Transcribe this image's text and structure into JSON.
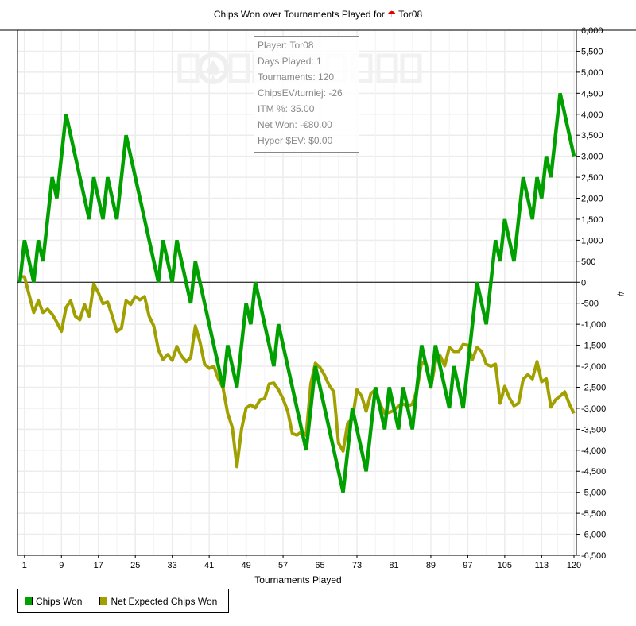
{
  "title": "Chips Won over Tournaments Played for",
  "player_icon": "poker-tracker-player-icon",
  "player_name": "Tor08",
  "watermark": "POKERTRACKER",
  "info": {
    "player": "Player: Tor08",
    "days": "Days Played: 1",
    "tournaments": "Tournaments: 120",
    "chipsev": "ChipsEV/turniej: -26",
    "itm": "ITM %: 35.00",
    "netwon": "Net Won: -€80.00",
    "hyper": "Hyper $EV: $0.00"
  },
  "chart_data": {
    "type": "line",
    "title": "Chips Won over Tournaments Played for Tor08",
    "xlabel": "Tournaments Played",
    "ylabel": "#",
    "xlim": [
      0,
      120
    ],
    "ylim": [
      -6500,
      6000
    ],
    "x_ticks": [
      1,
      9,
      17,
      25,
      33,
      41,
      49,
      57,
      65,
      73,
      81,
      89,
      97,
      105,
      113,
      120
    ],
    "y_ticks": [
      6000,
      5500,
      5000,
      4500,
      4000,
      3500,
      3000,
      2500,
      2000,
      1500,
      1000,
      500,
      0,
      -500,
      -1000,
      -1500,
      -2000,
      -2500,
      -3000,
      -3500,
      -4000,
      -4500,
      -5000,
      -5500,
      -6000,
      -6500
    ],
    "y_tick_labels": [
      "6,000",
      "5,500",
      "5,000",
      "4,500",
      "4,000",
      "3,500",
      "3,000",
      "2,500",
      "2,000",
      "1,500",
      "1,000",
      "500",
      "0",
      "-500",
      "-1,000",
      "-1,500",
      "-2,000",
      "-2,500",
      "-3,000",
      "-3,500",
      "-4,000",
      "-4,500",
      "-5,000",
      "-5,500",
      "-6,000",
      "-6,500"
    ],
    "grid": true,
    "legend_position": "bottom-left",
    "series": [
      {
        "name": "Chips Won",
        "color": "#00a000",
        "x": [
          0,
          1,
          3,
          4,
          5,
          7,
          8,
          10,
          15,
          16,
          18,
          19,
          21,
          23,
          30,
          31,
          33,
          34,
          37,
          38,
          44,
          45,
          47,
          49,
          50,
          51,
          55,
          56,
          62,
          64,
          70,
          72,
          75,
          77,
          79,
          80,
          82,
          83,
          85,
          87,
          89,
          90,
          93,
          94,
          96,
          99,
          101,
          103,
          104,
          105,
          107,
          109,
          111,
          112,
          113,
          114,
          115,
          117,
          120
        ],
        "y": [
          0,
          1000,
          0,
          1000,
          500,
          2500,
          2000,
          4000,
          1500,
          2500,
          1500,
          2500,
          1500,
          3500,
          0,
          1000,
          0,
          1000,
          -500,
          500,
          -2500,
          -1500,
          -2500,
          -500,
          -1000,
          0,
          -2000,
          -1000,
          -4000,
          -2000,
          -5000,
          -3000,
          -4500,
          -2500,
          -3500,
          -2500,
          -3500,
          -2500,
          -3500,
          -1500,
          -2500,
          -1500,
          -3000,
          -2000,
          -3000,
          0,
          -1000,
          1000,
          500,
          1500,
          500,
          2500,
          1500,
          2500,
          2000,
          3000,
          2500,
          4500,
          3000
        ]
      },
      {
        "name": "Net Expected Chips Won",
        "color": "#a0a000",
        "x_start": 0,
        "y": [
          130,
          130,
          -300,
          -720,
          -440,
          -720,
          -640,
          -760,
          -950,
          -1170,
          -600,
          -440,
          -810,
          -890,
          -530,
          -810,
          -40,
          -250,
          -510,
          -470,
          -800,
          -1170,
          -1100,
          -440,
          -530,
          -340,
          -420,
          -340,
          -810,
          -1040,
          -1610,
          -1840,
          -1720,
          -1860,
          -1530,
          -1760,
          -1890,
          -1800,
          -1040,
          -1420,
          -1950,
          -2050,
          -2000,
          -2300,
          -2520,
          -3120,
          -3450,
          -4390,
          -3500,
          -2990,
          -2920,
          -2990,
          -2800,
          -2770,
          -2420,
          -2400,
          -2560,
          -2780,
          -3070,
          -3600,
          -3640,
          -3560,
          -3640,
          -2420,
          -1930,
          -2030,
          -2220,
          -2460,
          -2610,
          -3830,
          -4020,
          -3350,
          -3260,
          -2560,
          -2710,
          -3070,
          -2650,
          -2560,
          -2900,
          -3120,
          -3100,
          -3050,
          -2950,
          -2900,
          -2950,
          -2900,
          -2560,
          -1900,
          -1950,
          -2500,
          -1900,
          -1750,
          -1990,
          -1550,
          -1650,
          -1650,
          -1480,
          -1500,
          -1840,
          -1550,
          -1650,
          -1950,
          -2000,
          -1950,
          -2880,
          -2480,
          -2750,
          -2940,
          -2880,
          -2310,
          -2200,
          -2300,
          -1890,
          -2370,
          -2300,
          -2970,
          -2800,
          -2710,
          -2610,
          -2900,
          -3120
        ]
      }
    ]
  }
}
